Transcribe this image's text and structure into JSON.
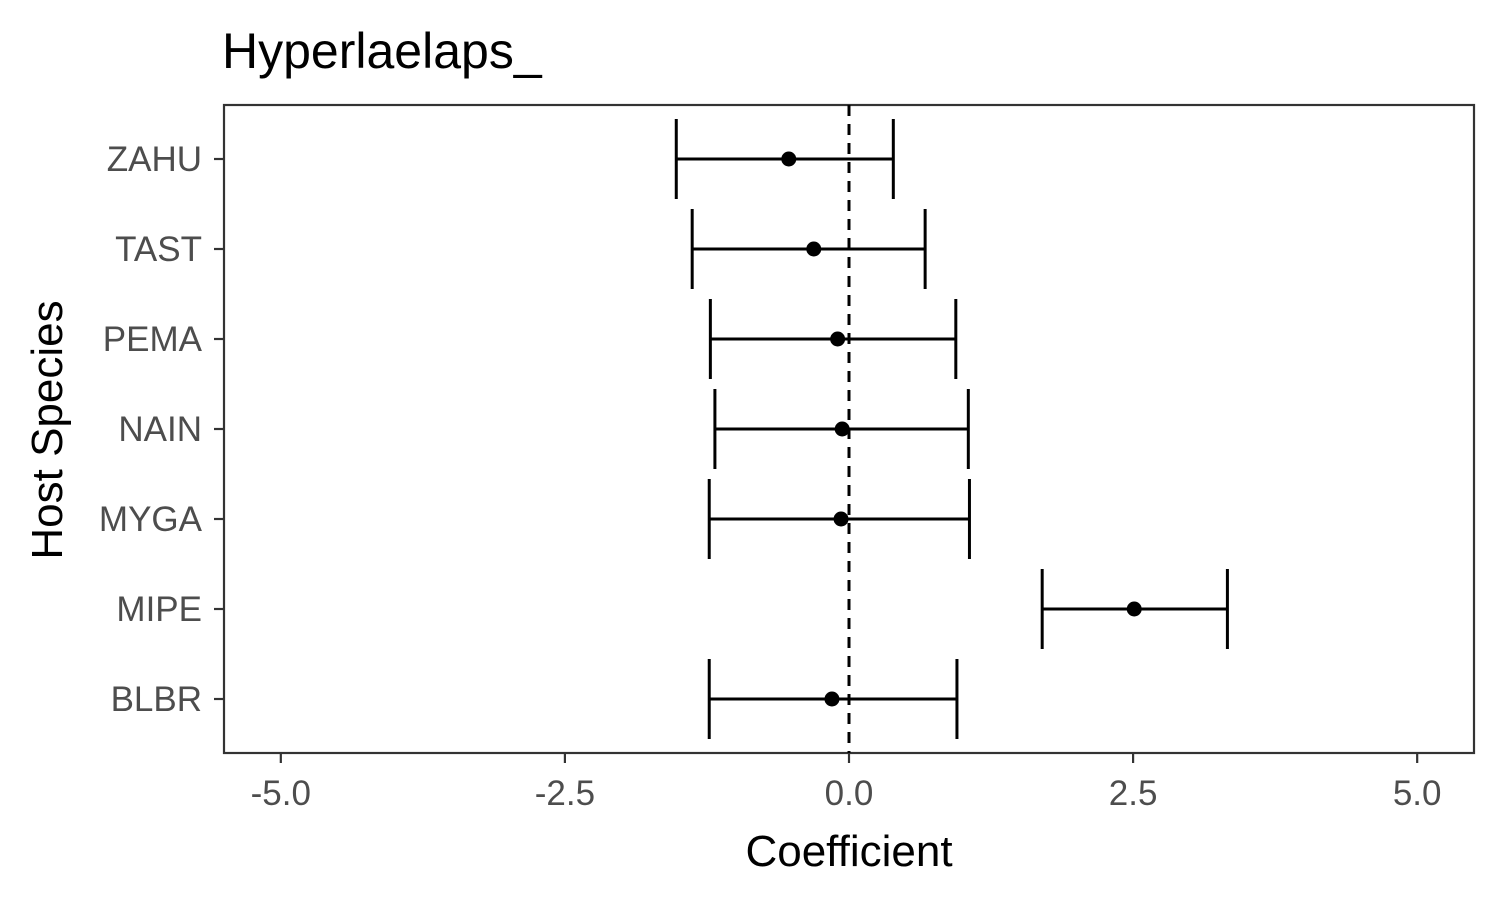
{
  "chart_data": {
    "type": "scatter",
    "subtype": "coefficient-errorbar",
    "title": "Hyperlaelaps_",
    "xlabel": "Coefficient",
    "ylabel": "Host Species",
    "xlim": [
      -5.5,
      5.5
    ],
    "xticks": [
      -5.0,
      -2.5,
      0.0,
      2.5,
      5.0
    ],
    "xtick_labels": [
      "-5.0",
      "-2.5",
      "0.0",
      "2.5",
      "5.0"
    ],
    "reference_line": {
      "x": 0.0,
      "style": "dashed"
    },
    "grid": false,
    "categories": [
      "ZAHU",
      "TAST",
      "PEMA",
      "NAIN",
      "MYGA",
      "MIPE",
      "BLBR"
    ],
    "points": [
      {
        "category": "ZAHU",
        "estimate": -0.53,
        "lower": -1.52,
        "upper": 0.39
      },
      {
        "category": "TAST",
        "estimate": -0.31,
        "lower": -1.38,
        "upper": 0.67
      },
      {
        "category": "PEMA",
        "estimate": -0.1,
        "lower": -1.22,
        "upper": 0.94
      },
      {
        "category": "NAIN",
        "estimate": -0.06,
        "lower": -1.18,
        "upper": 1.05
      },
      {
        "category": "MYGA",
        "estimate": -0.07,
        "lower": -1.23,
        "upper": 1.06
      },
      {
        "category": "MIPE",
        "estimate": 2.51,
        "lower": 1.7,
        "upper": 3.33
      },
      {
        "category": "BLBR",
        "estimate": -0.15,
        "lower": -1.23,
        "upper": 0.95
      }
    ],
    "colors": {
      "point": "#000000",
      "errorbar": "#000000",
      "panel_border": "#333333",
      "tick_text": "#4d4d4d"
    }
  }
}
